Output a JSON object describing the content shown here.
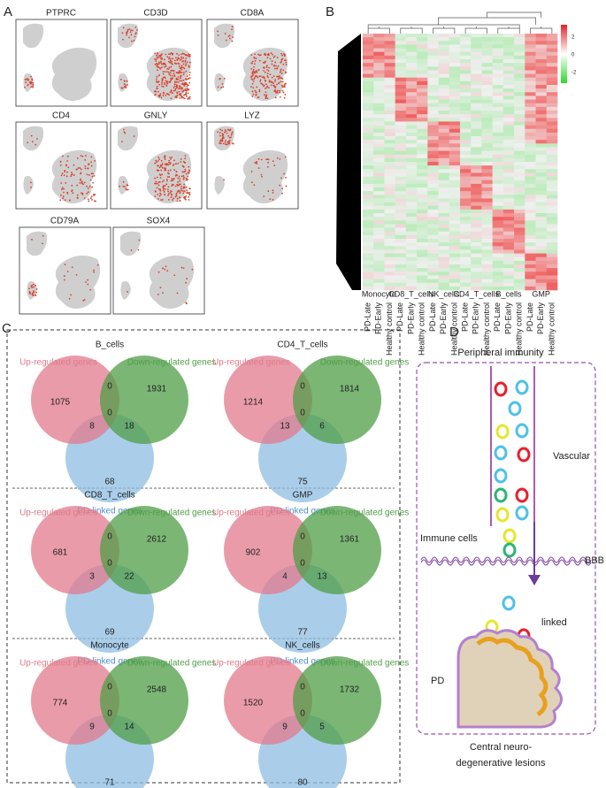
{
  "panels": {
    "a": {
      "label": "A",
      "genes": [
        "PTPRC",
        "CD3D",
        "CD8A",
        "CD4",
        "GNLY",
        "LYZ",
        "CD79A",
        "SOX4"
      ]
    },
    "b": {
      "label": "B",
      "legend_ticks": [
        2,
        0,
        -2
      ],
      "cell_types": [
        "Monocyte",
        "CD8_T_cells",
        "NK_cells",
        "CD4_T_cells",
        "B_cells",
        "GMP"
      ],
      "conditions": [
        "PD-Late",
        "PD-Early",
        "Healthy control"
      ]
    },
    "c": {
      "label": "C",
      "set_labels": {
        "up": "Up-regulated genes",
        "down": "Down-regulated genes",
        "pd": "PD-linked genes"
      },
      "venns": [
        {
          "title": "B_cells",
          "up_only": 1075,
          "up_down": 0,
          "all": 0,
          "up_pd": 8,
          "down_pd": 18,
          "down_only": 1931,
          "pd_only": 68
        },
        {
          "title": "CD4_T_cells",
          "up_only": 1214,
          "up_down": 0,
          "all": 0,
          "up_pd": 13,
          "down_pd": 6,
          "down_only": 1814,
          "pd_only": 75
        },
        {
          "title": "CD8_T_cells",
          "up_only": 681,
          "up_down": 0,
          "all": 0,
          "up_pd": 3,
          "down_pd": 22,
          "down_only": 2612,
          "pd_only": 69
        },
        {
          "title": "GMP",
          "up_only": 902,
          "up_down": 0,
          "all": 0,
          "up_pd": 4,
          "down_pd": 13,
          "down_only": 1361,
          "pd_only": 77
        },
        {
          "title": "Monocyte",
          "up_only": 774,
          "up_down": 0,
          "all": 0,
          "up_pd": 9,
          "down_pd": 14,
          "down_only": 2548,
          "pd_only": 71
        },
        {
          "title": "NK_cells",
          "up_only": 1520,
          "up_down": 0,
          "all": 0,
          "up_pd": 9,
          "down_pd": 5,
          "down_only": 1732,
          "pd_only": 80
        }
      ]
    },
    "d": {
      "label": "D",
      "title": "Peripheral immunity",
      "vascular": "Vascular",
      "immune_cells": "Immune cells",
      "bbb": "BBB",
      "linked": "linked",
      "pd": "PD",
      "caption": [
        "Central neuro-",
        "degenerative lesions"
      ]
    }
  }
}
